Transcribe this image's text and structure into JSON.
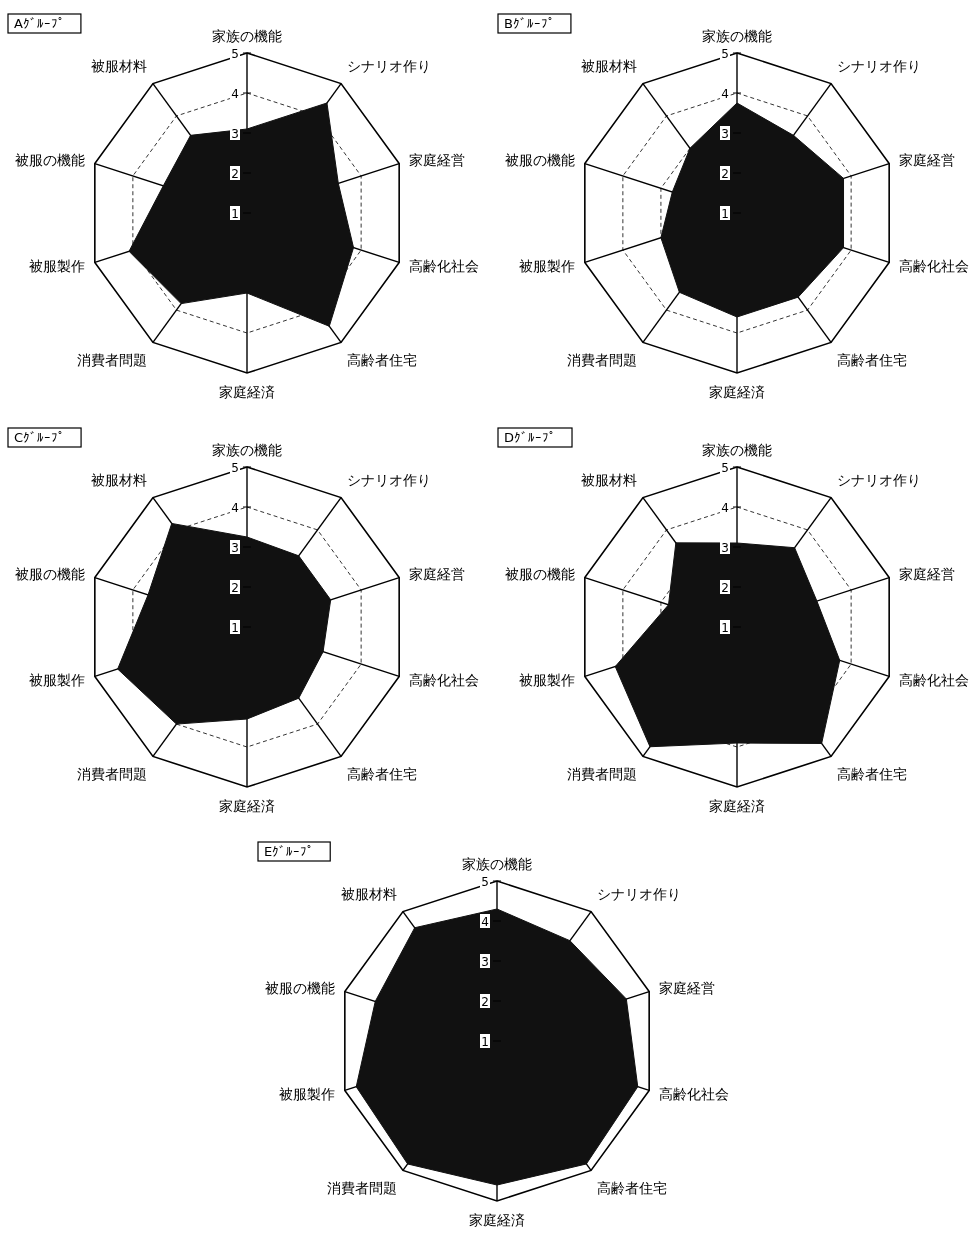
{
  "chart_data": [
    {
      "type": "radar",
      "title": "Aｸﾞﾙｰﾌﾟ",
      "categories": [
        "家族の機能",
        "シナリオ作り",
        "家庭経営",
        "高齢化社会",
        "高齢者住宅",
        "家庭経済",
        "消費者問題",
        "被服製作",
        "被服の機能",
        "被服材料"
      ],
      "ylim": [
        1,
        5
      ],
      "yticks": [
        1,
        2,
        3,
        4,
        5
      ],
      "grid": true,
      "series": [
        {
          "color": "#111111",
          "values": [
            3.1,
            4.4,
            3.4,
            3.8,
            4.5,
            3.0,
            3.8,
            4.1,
            3.2,
            3.4
          ]
        }
      ]
    },
    {
      "type": "radar",
      "title": "Bｸﾞﾙｰﾌﾟ",
      "categories": [
        "家族の機能",
        "シナリオ作り",
        "家庭経営",
        "高齢化社会",
        "高齢者住宅",
        "家庭経済",
        "消費者問題",
        "被服製作",
        "被服の機能",
        "被服材料"
      ],
      "ylim": [
        1,
        5
      ],
      "yticks": [
        1,
        2,
        3,
        4,
        5
      ],
      "grid": true,
      "series": [
        {
          "color": "#111111",
          "values": [
            3.75,
            3.4,
            3.8,
            3.8,
            3.6,
            3.6,
            3.45,
            3.0,
            2.7,
            3.0
          ]
        }
      ]
    },
    {
      "type": "radar",
      "title": "Cｸﾞﾙｰﾌﾟ",
      "categories": [
        "家族の機能",
        "シナリオ作り",
        "家庭経営",
        "高齢化社会",
        "高齢者住宅",
        "家庭経済",
        "消費者問題",
        "被服製作",
        "被服の機能",
        "被服材料"
      ],
      "ylim": [
        1,
        5
      ],
      "yticks": [
        1,
        2,
        3,
        4,
        5
      ],
      "grid": true,
      "series": [
        {
          "color": "#111111",
          "values": [
            3.25,
            3.2,
            3.2,
            3.0,
            3.2,
            3.3,
            4.0,
            4.4,
            3.6,
            4.2
          ]
        }
      ]
    },
    {
      "type": "radar",
      "title": "Dｸﾞﾙｰﾌﾟ",
      "categories": [
        "家族の機能",
        "シナリオ作り",
        "家庭経営",
        "高齢化社会",
        "高齢者住宅",
        "家庭経済",
        "消費者問題",
        "被服製作",
        "被服の機能",
        "被服材料"
      ],
      "ylim": [
        1,
        5
      ],
      "yticks": [
        1,
        2,
        3,
        4,
        5
      ],
      "grid": true,
      "series": [
        {
          "color": "#111111",
          "values": [
            3.1,
            3.45,
            3.1,
            3.7,
            4.6,
            3.9,
            4.7,
            4.2,
            2.8,
            3.6
          ]
        }
      ]
    },
    {
      "type": "radar",
      "title": "Eｸﾞﾙｰﾌﾟ",
      "categories": [
        "家族の機能",
        "シナリオ作り",
        "家庭経営",
        "高齢化社会",
        "高齢者住宅",
        "家庭経済",
        "消費者問題",
        "被服製作",
        "被服の機能",
        "被服材料"
      ],
      "ylim": [
        1,
        5
      ],
      "yticks": [
        1,
        2,
        3,
        4,
        5
      ],
      "grid": true,
      "series": [
        {
          "color": "#111111",
          "values": [
            4.3,
            4.1,
            4.4,
            4.7,
            4.8,
            4.6,
            4.8,
            4.7,
            4.2,
            4.5
          ]
        }
      ]
    }
  ]
}
